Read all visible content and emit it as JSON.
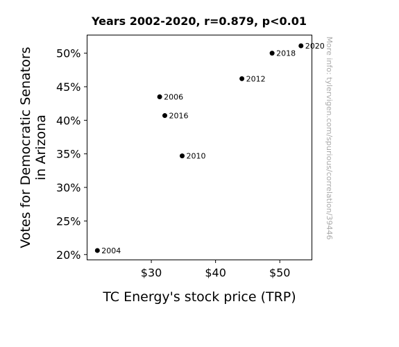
{
  "chart_data": {
    "type": "scatter",
    "title": "Years 2002-2020, r=0.879, p<0.01",
    "xlabel": "TC Energy's stock price (TRP)",
    "ylabel_lines": [
      "Votes for Democratic Senators",
      "in Arizona"
    ],
    "xlim": [
      20,
      55
    ],
    "ylim": [
      19.2,
      52.7
    ],
    "x_ticks": [
      {
        "value": 30,
        "label": "$30"
      },
      {
        "value": 40,
        "label": "$40"
      },
      {
        "value": 50,
        "label": "$50"
      }
    ],
    "y_ticks": [
      {
        "value": 20,
        "label": "20%"
      },
      {
        "value": 25,
        "label": "25%"
      },
      {
        "value": 30,
        "label": "30%"
      },
      {
        "value": 35,
        "label": "35%"
      },
      {
        "value": 40,
        "label": "40%"
      },
      {
        "value": 45,
        "label": "45%"
      },
      {
        "value": 50,
        "label": "50%"
      }
    ],
    "points": [
      {
        "label": "2004",
        "x": 21.6,
        "y": 20.6
      },
      {
        "label": "2006",
        "x": 31.3,
        "y": 43.5
      },
      {
        "label": "2010",
        "x": 34.8,
        "y": 34.7
      },
      {
        "label": "2012",
        "x": 44.1,
        "y": 46.2
      },
      {
        "label": "2016",
        "x": 32.1,
        "y": 40.7
      },
      {
        "label": "2018",
        "x": 48.8,
        "y": 50.0
      },
      {
        "label": "2020",
        "x": 53.3,
        "y": 51.1
      }
    ],
    "grid": false,
    "marker_color": "#000000"
  },
  "watermark": "More info: tylervigen.com/spurious/correlation/39446"
}
